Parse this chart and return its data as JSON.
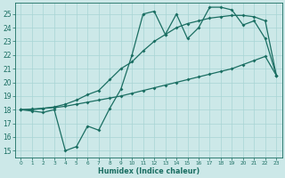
{
  "xlabel": "Humidex (Indice chaleur)",
  "x": [
    0,
    1,
    2,
    3,
    4,
    5,
    6,
    7,
    8,
    9,
    10,
    11,
    12,
    13,
    14,
    15,
    16,
    17,
    18,
    19,
    20,
    21,
    22,
    23
  ],
  "line1": [
    18,
    17.9,
    17.8,
    18.0,
    15.0,
    15.3,
    16.8,
    16.5,
    18.1,
    19.5,
    22.0,
    25.0,
    25.2,
    23.5,
    25.0,
    23.2,
    24.0,
    25.5,
    25.5,
    25.3,
    24.2,
    24.5,
    23.2,
    20.5
  ],
  "line2": [
    18,
    18.0,
    18.1,
    18.2,
    18.4,
    18.7,
    19.1,
    19.4,
    20.2,
    21.0,
    21.5,
    22.3,
    23.0,
    23.5,
    24.0,
    24.3,
    24.5,
    24.7,
    24.8,
    24.9,
    24.9,
    24.8,
    24.5,
    20.5
  ],
  "line3": [
    18,
    18.05,
    18.1,
    18.15,
    18.25,
    18.4,
    18.55,
    18.7,
    18.85,
    19.0,
    19.2,
    19.4,
    19.6,
    19.8,
    20.0,
    20.2,
    20.4,
    20.6,
    20.8,
    21.0,
    21.3,
    21.6,
    21.9,
    20.5
  ],
  "line_color": "#1a6e62",
  "bg_color": "#cce8e8",
  "grid_color": "#a8d4d4",
  "ylim": [
    14.5,
    25.8
  ],
  "yticks": [
    15,
    16,
    17,
    18,
    19,
    20,
    21,
    22,
    23,
    24,
    25
  ],
  "xticks": [
    0,
    1,
    2,
    3,
    4,
    5,
    6,
    7,
    8,
    9,
    10,
    11,
    12,
    13,
    14,
    15,
    16,
    17,
    18,
    19,
    20,
    21,
    22,
    23
  ]
}
